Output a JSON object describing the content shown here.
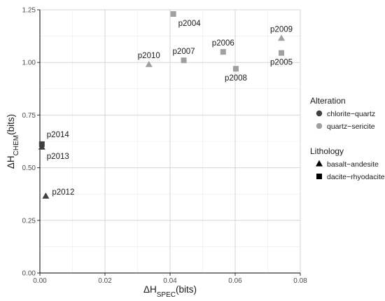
{
  "chart_data": {
    "type": "scatter",
    "xlabel": {
      "main": "ΔH",
      "sub": "SPEC",
      "unit": "(bits)"
    },
    "ylabel": {
      "main": "ΔH",
      "sub": "CHEM",
      "unit": "(bits)"
    },
    "xlim": [
      0,
      0.08
    ],
    "ylim": [
      0,
      1.25
    ],
    "xticks": [
      "0.00",
      "0.02",
      "0.04",
      "0.06",
      "0.08"
    ],
    "yticks": [
      "0.00",
      "0.25",
      "0.50",
      "0.75",
      "1.00",
      "1.25"
    ],
    "grid": true,
    "legend_position": "right",
    "colors": {
      "chlorite-quartz": "#404040",
      "quartz-sericite": "#a0a0a0"
    },
    "legends": [
      {
        "title": "Alteration",
        "entries": [
          {
            "label": "chlorite−quartz",
            "key": "chlorite-quartz",
            "shape": "circle"
          },
          {
            "label": "quartz−sericite",
            "key": "quartz-sericite",
            "shape": "circle"
          }
        ]
      },
      {
        "title": "Lithology",
        "entries": [
          {
            "label": "basalt−andesite",
            "key": "basalt-andesite",
            "shape": "triangle"
          },
          {
            "label": "dacite−rhyodacite",
            "key": "dacite-rhyodacite",
            "shape": "square"
          }
        ]
      }
    ],
    "points": [
      {
        "label": "p2004",
        "x": 0.041,
        "y": 1.23,
        "alteration": "quartz-sericite",
        "lithology": "dacite-rhyodacite",
        "label_pos": "below-right"
      },
      {
        "label": "p2005",
        "x": 0.0742,
        "y": 1.045,
        "alteration": "quartz-sericite",
        "lithology": "dacite-rhyodacite",
        "label_pos": "below"
      },
      {
        "label": "p2006",
        "x": 0.0563,
        "y": 1.05,
        "alteration": "quartz-sericite",
        "lithology": "dacite-rhyodacite",
        "label_pos": "above"
      },
      {
        "label": "p2007",
        "x": 0.0442,
        "y": 1.01,
        "alteration": "quartz-sericite",
        "lithology": "dacite-rhyodacite",
        "label_pos": "above"
      },
      {
        "label": "p2008",
        "x": 0.0602,
        "y": 0.97,
        "alteration": "quartz-sericite",
        "lithology": "dacite-rhyodacite",
        "label_pos": "below"
      },
      {
        "label": "p2009",
        "x": 0.0742,
        "y": 1.115,
        "alteration": "quartz-sericite",
        "lithology": "basalt-andesite",
        "label_pos": "above"
      },
      {
        "label": "p2010",
        "x": 0.0335,
        "y": 0.99,
        "alteration": "quartz-sericite",
        "lithology": "basalt-andesite",
        "label_pos": "above"
      },
      {
        "label": "p2012",
        "x": 0.0018,
        "y": 0.365,
        "alteration": "chlorite-quartz",
        "lithology": "basalt-andesite",
        "label_pos": "right"
      },
      {
        "label": "p2013",
        "x": 0.0006,
        "y": 0.598,
        "alteration": "chlorite-quartz",
        "lithology": "basalt-andesite",
        "label_pos": "below-right"
      },
      {
        "label": "p2014",
        "x": 0.0006,
        "y": 0.612,
        "alteration": "chlorite-quartz",
        "lithology": "dacite-rhyodacite",
        "label_pos": "above-right"
      }
    ]
  }
}
